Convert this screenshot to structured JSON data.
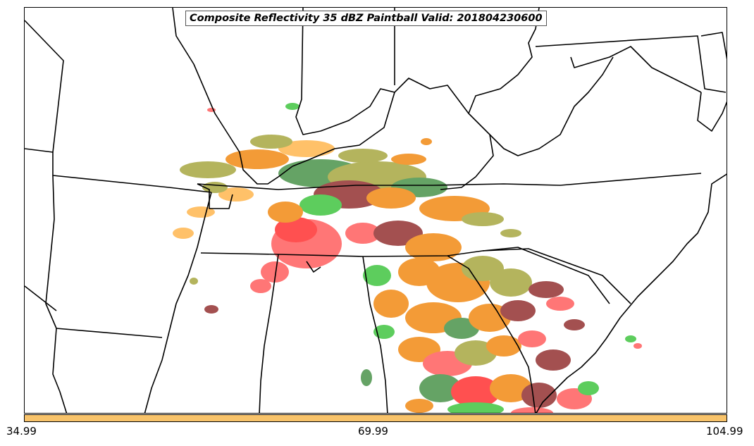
{
  "title": "Composite Reflectivity 35 dBZ Paintball Valid: 201804230600",
  "colorbar": {
    "color": "#f8c36a",
    "ticks": [
      "34.99",
      "69.99",
      "104.99"
    ]
  },
  "colors": {
    "red": "#ff5050",
    "orange": "#f08000",
    "light_orange": "#ffb040",
    "olive": "#a0a030",
    "green": "#30c030",
    "dark_green": "#3a8a3a",
    "maroon": "#8a2020"
  },
  "map": {
    "region": "southeastern-united-states",
    "boundaries": "state-lines-and-coastline"
  }
}
